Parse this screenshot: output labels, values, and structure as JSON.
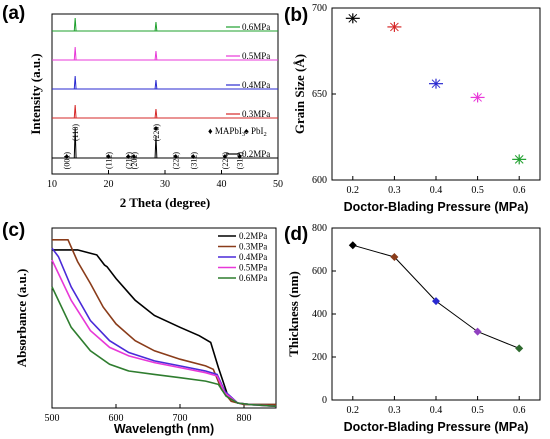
{
  "chart_data": [
    {
      "panel": "(a)",
      "type": "line",
      "xlabel": "2 Theta (degree)",
      "ylabel": "Intensity (a.u.)",
      "xlim": [
        10,
        50
      ],
      "xticks": [
        10,
        20,
        30,
        40,
        50
      ],
      "series": [
        {
          "name": "0.6MPa",
          "color": "#1fa02e",
          "peaks": [
            14.1,
            28.4
          ]
        },
        {
          "name": "0.5MPa",
          "color": "#e838d8",
          "peaks": [
            14.1,
            28.4
          ]
        },
        {
          "name": "0.4MPa",
          "color": "#2a2ad0",
          "peaks": [
            14.1,
            28.4
          ]
        },
        {
          "name": "0.3MPa",
          "color": "#d62828",
          "peaks": [
            14.1,
            28.4
          ]
        },
        {
          "name": "0.2MPa",
          "color": "#000000",
          "peaks": [
            14.1,
            28.4
          ]
        }
      ],
      "peak_labels": [
        {
          "label": "(001)",
          "x": 12.6
        },
        {
          "label": "(110)",
          "x": 14.1
        },
        {
          "label": "(112)",
          "x": 20.0
        },
        {
          "label": "(211)",
          "x": 23.5
        },
        {
          "label": "(202)",
          "x": 24.5
        },
        {
          "label": "(220)",
          "x": 28.4
        },
        {
          "label": "(222)",
          "x": 31.9
        },
        {
          "label": "(312)",
          "x": 35.0
        },
        {
          "label": "(224)",
          "x": 40.6
        },
        {
          "label": "(314)",
          "x": 43.2
        }
      ],
      "legend_extra": [
        "MAPbI",
        "3",
        "PbI",
        "2"
      ]
    },
    {
      "panel": "(b)",
      "type": "scatter",
      "xlabel": "Doctor-Blading Pressure (MPa)",
      "ylabel": "Grain Size (Å)",
      "xlim": [
        0.15,
        0.65
      ],
      "ylim": [
        600,
        700
      ],
      "xticks": [
        0.2,
        0.3,
        0.4,
        0.5,
        0.6
      ],
      "yticks": [
        600,
        650,
        700
      ],
      "x": [
        0.2,
        0.3,
        0.4,
        0.5,
        0.6
      ],
      "y": [
        694,
        689,
        656,
        648,
        612
      ],
      "colors": [
        "#000000",
        "#d62828",
        "#2a2ad0",
        "#e838d8",
        "#1fa02e"
      ]
    },
    {
      "panel": "(c)",
      "type": "line",
      "xlabel": "Wavelength (nm)",
      "ylabel": "Absorbance (a.u.)",
      "xlim": [
        500,
        850
      ],
      "xticks": [
        500,
        600,
        700,
        800
      ],
      "series": [
        {
          "name": "0.2MPa",
          "color": "#000000",
          "x": [
            500,
            540,
            570,
            582,
            586,
            600,
            630,
            660,
            700,
            730,
            748,
            760,
            775,
            790,
            810,
            850
          ],
          "y": [
            0.92,
            0.92,
            0.89,
            0.83,
            0.82,
            0.75,
            0.62,
            0.53,
            0.46,
            0.41,
            0.37,
            0.22,
            0.05,
            0.01,
            0.0,
            0.0
          ]
        },
        {
          "name": "0.3MPa",
          "color": "#8a3c1a",
          "x": [
            500,
            525,
            540,
            560,
            580,
            600,
            630,
            660,
            700,
            740,
            752,
            765,
            780,
            800,
            850
          ],
          "y": [
            0.98,
            0.98,
            0.85,
            0.72,
            0.58,
            0.48,
            0.38,
            0.32,
            0.27,
            0.23,
            0.21,
            0.09,
            0.02,
            0.0,
            0.0
          ]
        },
        {
          "name": "0.4MPa",
          "color": "#4a2ad8",
          "x": [
            500,
            510,
            530,
            560,
            590,
            620,
            660,
            700,
            740,
            758,
            770,
            790,
            810,
            850
          ],
          "y": [
            0.93,
            0.88,
            0.7,
            0.5,
            0.38,
            0.31,
            0.26,
            0.23,
            0.2,
            0.18,
            0.08,
            0.01,
            0.0,
            -0.01
          ]
        },
        {
          "name": "0.5MPa",
          "color": "#e838d8",
          "x": [
            500,
            530,
            560,
            590,
            620,
            660,
            700,
            740,
            758,
            770,
            790,
            810,
            850
          ],
          "y": [
            0.86,
            0.62,
            0.44,
            0.34,
            0.29,
            0.25,
            0.22,
            0.19,
            0.17,
            0.07,
            0.01,
            0.0,
            -0.01
          ]
        },
        {
          "name": "0.6MPa",
          "color": "#2f7d2f",
          "x": [
            500,
            530,
            560,
            590,
            620,
            660,
            700,
            740,
            760,
            772,
            790,
            810,
            850
          ],
          "y": [
            0.7,
            0.46,
            0.32,
            0.24,
            0.2,
            0.18,
            0.16,
            0.14,
            0.12,
            0.05,
            0.01,
            0.0,
            -0.01
          ]
        }
      ]
    },
    {
      "panel": "(d)",
      "type": "line",
      "xlabel": "Doctor-Blading Pressure (MPa)",
      "ylabel": "Thickness (nm)",
      "xlim": [
        0.15,
        0.65
      ],
      "ylim": [
        0,
        800
      ],
      "xticks": [
        0.2,
        0.3,
        0.4,
        0.5,
        0.6
      ],
      "yticks": [
        0,
        200,
        400,
        600,
        800
      ],
      "x": [
        0.2,
        0.3,
        0.4,
        0.5,
        0.6
      ],
      "y": [
        720,
        665,
        460,
        318,
        240
      ],
      "colors": [
        "#000000",
        "#8a3c1a",
        "#2a2ad0",
        "#9040c0",
        "#2f6a2f"
      ]
    }
  ]
}
